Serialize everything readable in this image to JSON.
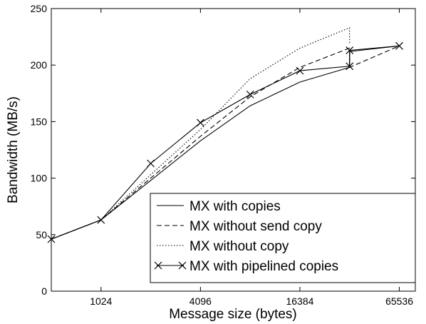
{
  "chart_data": {
    "type": "line",
    "title": "",
    "xlabel": "Message size (bytes)",
    "ylabel": "Bandwidth (MB/s)",
    "x_scale": "log2",
    "xlim": [
      512,
      81920
    ],
    "ylim": [
      0,
      250
    ],
    "xticks": [
      1024,
      4096,
      16384,
      65536
    ],
    "yticks": [
      0,
      50,
      100,
      150,
      200,
      250
    ],
    "grid": false,
    "legend_position": "bottom-right",
    "series": [
      {
        "name": "MX with copies",
        "style": "solid",
        "markers": false,
        "points": [
          [
            512,
            46
          ],
          [
            1024,
            63
          ],
          [
            2048,
            98
          ],
          [
            4096,
            133
          ],
          [
            8192,
            164
          ],
          [
            16384,
            185
          ],
          [
            32768,
            198
          ],
          [
            32768,
            212
          ],
          [
            65536,
            217
          ]
        ]
      },
      {
        "name": "MX without send copy",
        "style": "dashed",
        "markers": false,
        "points": [
          [
            512,
            46
          ],
          [
            1024,
            63
          ],
          [
            2048,
            100
          ],
          [
            4096,
            137
          ],
          [
            8192,
            172
          ],
          [
            16384,
            198
          ],
          [
            32768,
            215
          ],
          [
            32768,
            198
          ],
          [
            65536,
            217
          ]
        ]
      },
      {
        "name": "MX without copy",
        "style": "dotted",
        "markers": false,
        "points": [
          [
            512,
            46
          ],
          [
            1024,
            63
          ],
          [
            2048,
            103
          ],
          [
            4096,
            143
          ],
          [
            8192,
            188
          ],
          [
            16384,
            215
          ],
          [
            32768,
            233
          ],
          [
            32768,
            218
          ]
        ]
      },
      {
        "name": "MX with pipelined copies",
        "style": "solid",
        "markers": true,
        "points": [
          [
            512,
            46
          ],
          [
            1024,
            63
          ],
          [
            2048,
            113
          ],
          [
            4096,
            149
          ],
          [
            8192,
            174
          ],
          [
            16384,
            195
          ],
          [
            32768,
            199
          ],
          [
            32768,
            213
          ],
          [
            65536,
            217
          ]
        ]
      }
    ]
  }
}
